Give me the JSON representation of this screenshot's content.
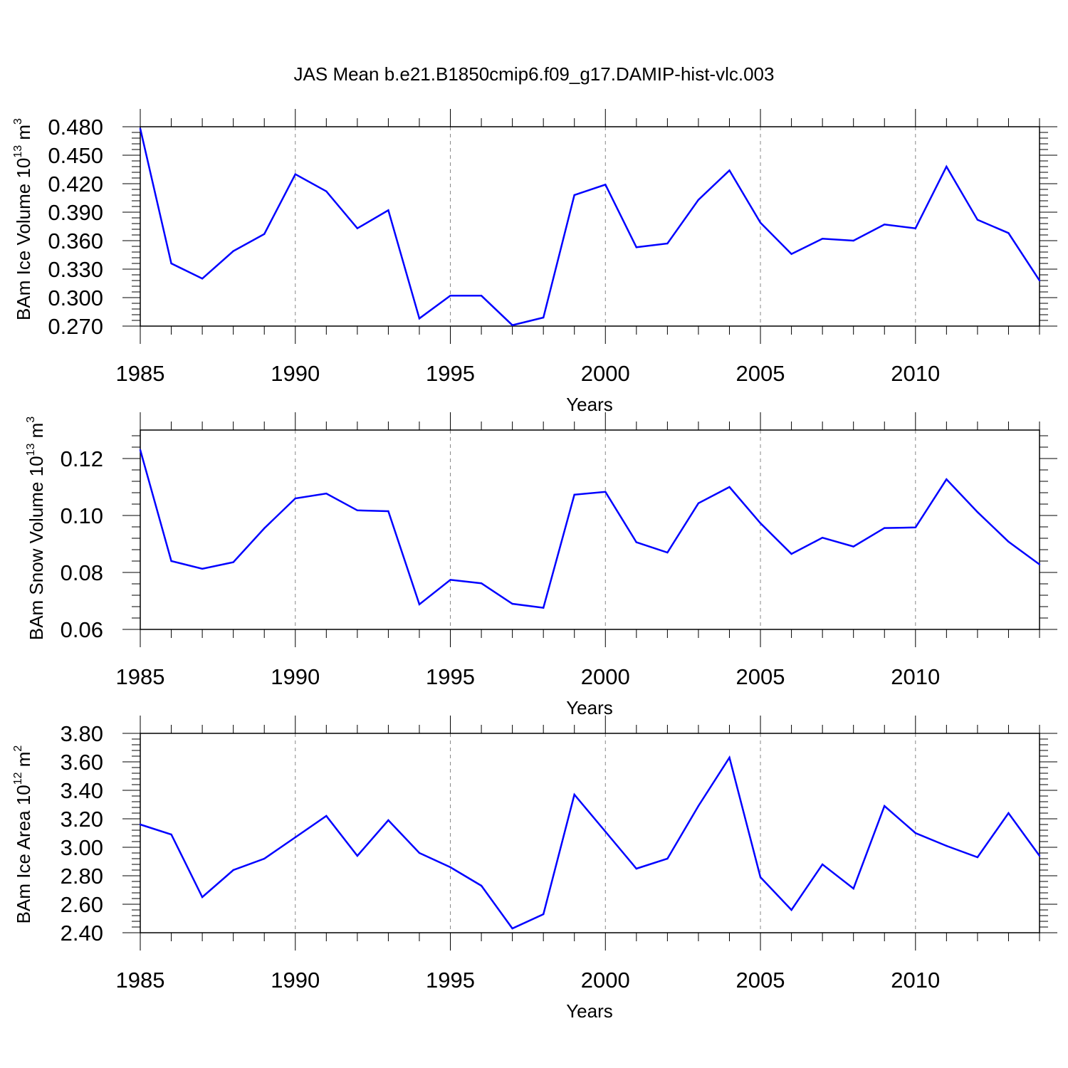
{
  "figure": {
    "title": "JAS Mean b.e21.B1850cmip6.f09_g17.DAMIP-hist-vlc.003",
    "line_color": "#0000ff",
    "grid_color": "#888888"
  },
  "chart_data": [
    {
      "type": "line",
      "ylabel_main": "BAm Ice Volume 10",
      "ylabel_exp": "13",
      "ylabel_unit": "m",
      "ylabel_unit_exp": "3",
      "xlabel": "Years",
      "x": [
        1985,
        1986,
        1987,
        1988,
        1989,
        1990,
        1991,
        1992,
        1993,
        1994,
        1995,
        1996,
        1997,
        1998,
        1999,
        2000,
        2001,
        2002,
        2003,
        2004,
        2005,
        2006,
        2007,
        2008,
        2009,
        2010,
        2011,
        2012,
        2013,
        2014
      ],
      "values": [
        0.478,
        0.336,
        0.32,
        0.349,
        0.367,
        0.43,
        0.412,
        0.373,
        0.392,
        0.278,
        0.302,
        0.302,
        0.271,
        0.279,
        0.408,
        0.419,
        0.353,
        0.357,
        0.403,
        0.434,
        0.379,
        0.346,
        0.362,
        0.36,
        0.377,
        0.373,
        0.438,
        0.382,
        0.368,
        0.318
      ],
      "xlim": [
        1985,
        2014
      ],
      "ylim": [
        0.27,
        0.48
      ],
      "yticks": [
        "0.270",
        "0.300",
        "0.330",
        "0.360",
        "0.390",
        "0.420",
        "0.450",
        "0.480"
      ],
      "xticks": [
        "1985",
        "1990",
        "1995",
        "2000",
        "2005",
        "2010"
      ]
    },
    {
      "type": "line",
      "ylabel_main": "BAm Snow Volume 10",
      "ylabel_exp": "13",
      "ylabel_unit": "m",
      "ylabel_unit_exp": "3",
      "xlabel": "Years",
      "x": [
        1985,
        1986,
        1987,
        1988,
        1989,
        1990,
        1991,
        1992,
        1993,
        1994,
        1995,
        1996,
        1997,
        1998,
        1999,
        2000,
        2001,
        2002,
        2003,
        2004,
        2005,
        2006,
        2007,
        2008,
        2009,
        2010,
        2011,
        2012,
        2013,
        2014
      ],
      "values": [
        0.123,
        0.084,
        0.0813,
        0.0836,
        0.0955,
        0.106,
        0.1077,
        0.1018,
        0.1015,
        0.0688,
        0.0774,
        0.0762,
        0.069,
        0.0676,
        0.1073,
        0.1083,
        0.0906,
        0.087,
        0.1043,
        0.11,
        0.0973,
        0.0865,
        0.0922,
        0.0891,
        0.0956,
        0.0958,
        0.1127,
        0.1012,
        0.0908,
        0.0828
      ],
      "xlim": [
        1985,
        2014
      ],
      "ylim": [
        0.06,
        0.13
      ],
      "yticks": [
        "0.06",
        "0.08",
        "0.10",
        "0.12"
      ],
      "xticks": [
        "1985",
        "1990",
        "1995",
        "2000",
        "2005",
        "2010"
      ]
    },
    {
      "type": "line",
      "ylabel_main": "BAm Ice Area 10",
      "ylabel_exp": "12",
      "ylabel_unit": "m",
      "ylabel_unit_exp": "2",
      "xlabel": "Years",
      "x": [
        1985,
        1986,
        1987,
        1988,
        1989,
        1990,
        1991,
        1992,
        1993,
        1994,
        1995,
        1996,
        1997,
        1998,
        1999,
        2000,
        2001,
        2002,
        2003,
        2004,
        2005,
        2006,
        2007,
        2008,
        2009,
        2010,
        2011,
        2012,
        2013,
        2014
      ],
      "values": [
        3.16,
        3.09,
        2.65,
        2.84,
        2.92,
        3.07,
        3.22,
        2.94,
        3.19,
        2.96,
        2.86,
        2.73,
        2.43,
        2.53,
        3.37,
        3.11,
        2.85,
        2.92,
        3.29,
        3.63,
        2.79,
        2.56,
        2.88,
        2.71,
        3.29,
        3.1,
        3.01,
        2.93,
        3.24,
        2.94
      ],
      "xlim": [
        1985,
        2014
      ],
      "ylim": [
        2.4,
        3.8
      ],
      "yticks": [
        "2.40",
        "2.60",
        "2.80",
        "3.00",
        "3.20",
        "3.40",
        "3.60",
        "3.80"
      ],
      "xticks": [
        "1985",
        "1990",
        "1995",
        "2000",
        "2005",
        "2010"
      ]
    }
  ]
}
